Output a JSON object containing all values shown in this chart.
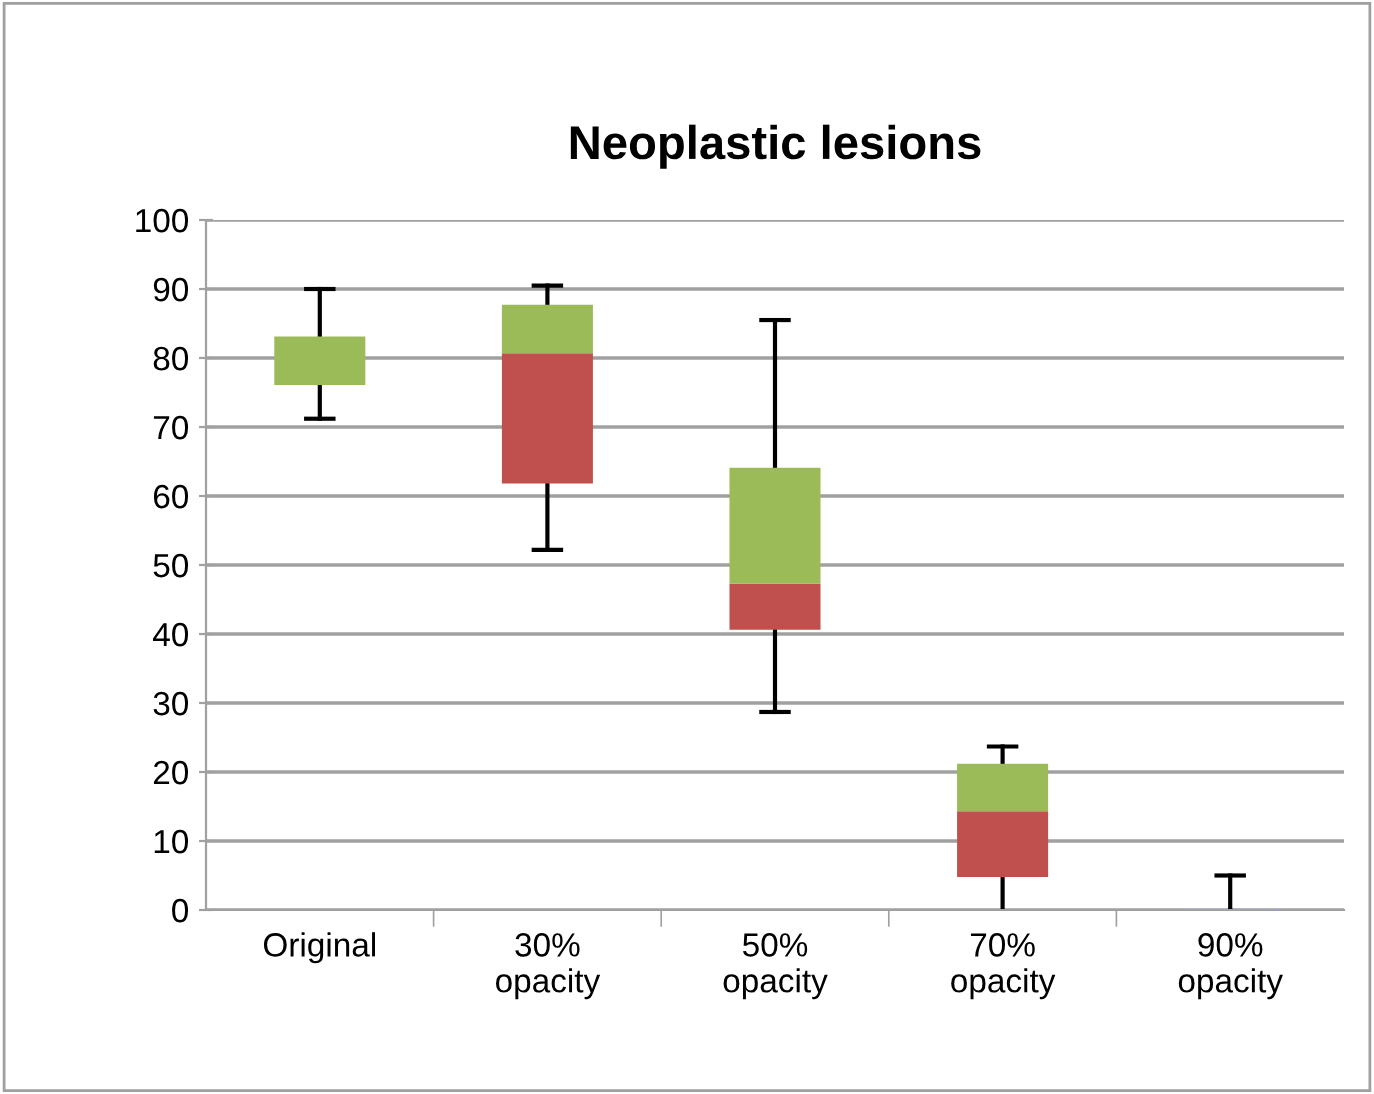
{
  "chart_data": {
    "type": "box",
    "title": "Neoplastic lesions",
    "categories": [
      "Original",
      "30%\nopacity",
      "50%\nopacity",
      "70%\nopacity",
      "90%\nopacity"
    ],
    "boxes": [
      {
        "low": 71.2,
        "q1": 76.1,
        "median": 76.1,
        "q3": 83.1,
        "high": 90
      },
      {
        "low": 52.2,
        "q1": 61.8,
        "median": 80.7,
        "q3": 87.7,
        "high": 90.5
      },
      {
        "low": 28.7,
        "q1": 40.6,
        "median": 47.3,
        "q3": 64.1,
        "high": 85.5
      },
      {
        "low": 0,
        "q1": 4.8,
        "median": 14.3,
        "q3": 21.2,
        "high": 23.7
      },
      {
        "low": 0,
        "q1": 0,
        "median": 0,
        "q3": 0,
        "high": 5
      }
    ],
    "colors": [
      [
        "#c0504d",
        "#9bbb59"
      ],
      [
        "#c0504d",
        "#9bbb59"
      ],
      [
        "#c0504d",
        "#9bbb59"
      ],
      [
        "#c0504d",
        "#9bbb59"
      ],
      [
        "#c0504d",
        "#9bbb59"
      ]
    ],
    "ylim": [
      0,
      100
    ],
    "yticks": [
      0,
      10,
      20,
      30,
      40,
      50,
      60,
      70,
      80,
      90,
      100
    ],
    "grid": "y"
  }
}
